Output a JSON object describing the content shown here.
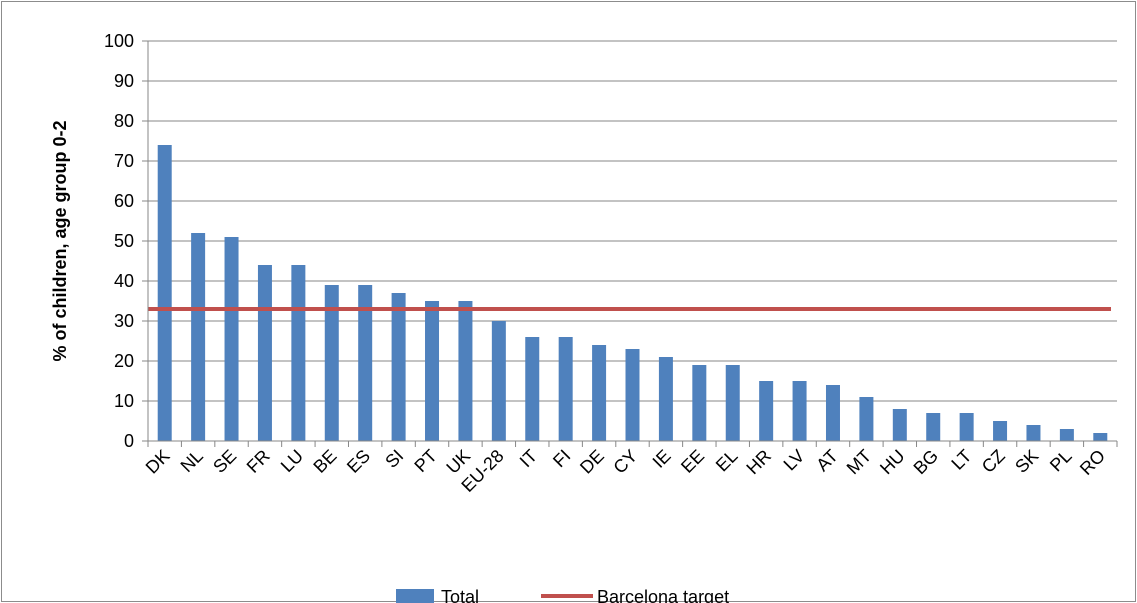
{
  "chart_data": {
    "type": "bar",
    "title": "",
    "xlabel": "",
    "ylabel": "% of children, age group 0-2",
    "ylim": [
      0,
      100
    ],
    "yticks": [
      0,
      10,
      20,
      30,
      40,
      50,
      60,
      70,
      80,
      90,
      100
    ],
    "grid": true,
    "legend_position": "bottom",
    "categories": [
      "DK",
      "NL",
      "SE",
      "FR",
      "LU",
      "BE",
      "ES",
      "SI",
      "PT",
      "UK",
      "EU-28",
      "IT",
      "FI",
      "DE",
      "CY",
      "IE",
      "EE",
      "EL",
      "HR",
      "LV",
      "AT",
      "MT",
      "HU",
      "BG",
      "LT",
      "CZ",
      "SK",
      "PL",
      "RO"
    ],
    "series": [
      {
        "name": "Total",
        "type": "bar",
        "color": "#4f81bd",
        "values": [
          74,
          52,
          51,
          44,
          44,
          39,
          39,
          37,
          35,
          35,
          30,
          26,
          26,
          24,
          23,
          21,
          19,
          19,
          15,
          15,
          14,
          11,
          8,
          7,
          7,
          5,
          4,
          3,
          2
        ]
      },
      {
        "name": "Barcelona target",
        "type": "line",
        "color": "#c0504d",
        "value": 33
      }
    ]
  }
}
